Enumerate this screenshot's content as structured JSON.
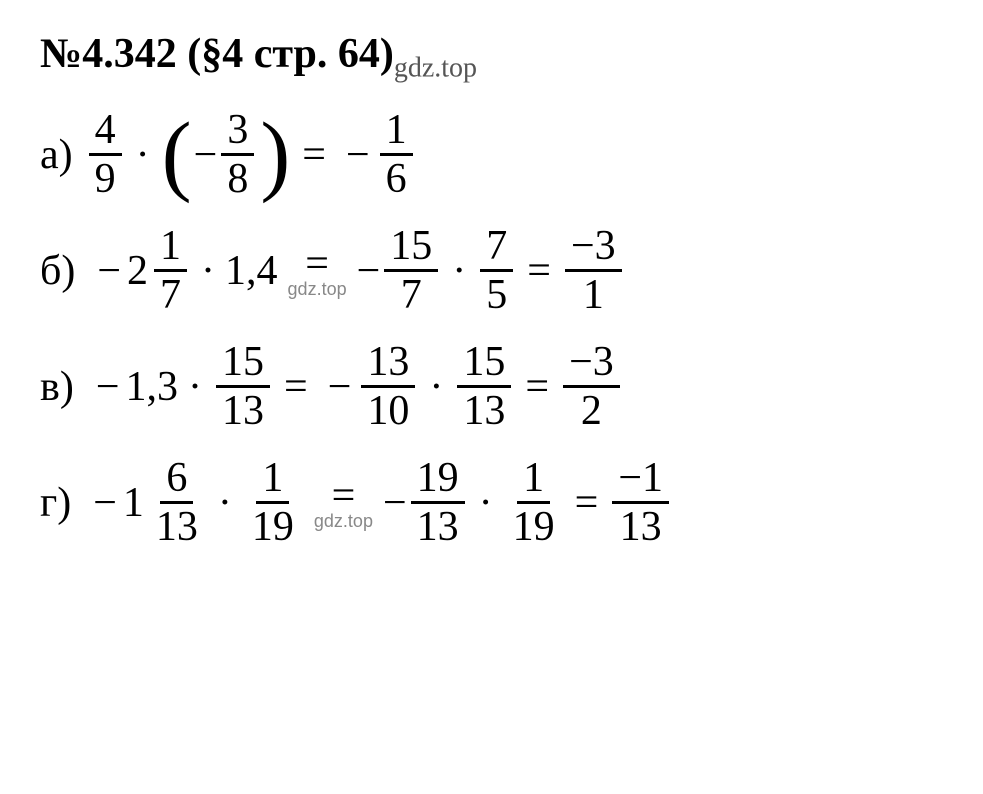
{
  "header": {
    "problem_number": "№4.342",
    "section": "(§4 стр. 64)",
    "watermark": "gdz.top"
  },
  "problems": {
    "a": {
      "label": "а)",
      "f1_num": "4",
      "f1_den": "9",
      "dot": "·",
      "lparen": "(",
      "minus": "−",
      "f2_num": "3",
      "f2_den": "8",
      "rparen": ")",
      "eq": "=",
      "neg2": "−",
      "r_num": "1",
      "r_den": "6"
    },
    "b": {
      "label": "б)",
      "neg1": "−",
      "whole1": "2",
      "f1_num": "1",
      "f1_den": "7",
      "dot1": "·",
      "val": "1,4",
      "eq1": "=",
      "wm1": "gdz.top",
      "neg2": "−",
      "f2_num": "15",
      "f2_den": "7",
      "dot2": "·",
      "f3_num": "7",
      "f3_den": "5",
      "eq2": "=",
      "r_num": "−3",
      "r_den": "1"
    },
    "c": {
      "label": "в)",
      "neg1": "−",
      "val": "1,3",
      "dot1": "·",
      "f1_num": "15",
      "f1_den": "13",
      "eq1": "=",
      "neg2": "−",
      "f2_num": "13",
      "f2_den": "10",
      "dot2": "·",
      "f3_num": "15",
      "f3_den": "13",
      "eq2": "=",
      "r_num": "−3",
      "r_den": "2"
    },
    "d": {
      "label": "г)",
      "neg1": "−",
      "whole1": "1",
      "f1_num": "6",
      "f1_den": "13",
      "dot1": "·",
      "f2_num": "1",
      "f2_den": "19",
      "eq1": "=",
      "wm1": "gdz.top",
      "neg2": "−",
      "f3_num": "19",
      "f3_den": "13",
      "dot2": "·",
      "f4_num": "1",
      "f4_den": "19",
      "eq2": "=",
      "r_num": "−1",
      "r_den": "13"
    }
  },
  "colors": {
    "text": "#000000",
    "watermark": "#888888",
    "background": "#ffffff"
  },
  "typography": {
    "header_fontsize": 42,
    "body_fontsize": 42,
    "watermark_fontsize": 20
  }
}
